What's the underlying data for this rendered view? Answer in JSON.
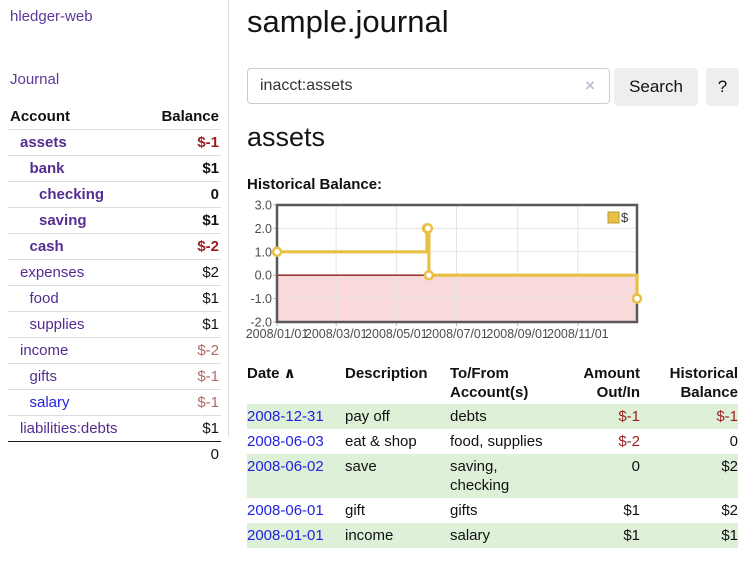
{
  "colors": {
    "link_purple": "#552d90",
    "link_blue": "#2222dd",
    "negative_red": "#9c1f1f",
    "negative_muted": "#b06a66",
    "row_green": "#def0d8",
    "chart_line_gold": "#e9c045",
    "chart_zero_line": "#8b1a1a",
    "chart_negative_fill": "#f9d9d9",
    "chart_border": "#595959",
    "chart_grid": "#e4e4e4",
    "chart_text": "#4d4d4d"
  },
  "sidebar": {
    "app_title": "hledger-web",
    "nav": {
      "journal_label": "Journal"
    },
    "accounts_table": {
      "headers": {
        "account": "Account",
        "balance": "Balance"
      },
      "rows": [
        {
          "name": "assets",
          "depth": 1,
          "bold": true,
          "balance": "$-1",
          "balance_color": "negative"
        },
        {
          "name": "bank",
          "depth": 2,
          "bold": true,
          "balance": "$1"
        },
        {
          "name": "checking",
          "depth": 3,
          "bold": true,
          "balance": "0"
        },
        {
          "name": "saving",
          "depth": 3,
          "bold": true,
          "balance": "$1"
        },
        {
          "name": "cash",
          "depth": 2,
          "bold": true,
          "balance": "$-2",
          "balance_color": "negative"
        },
        {
          "name": "expenses",
          "depth": 1,
          "bold": false,
          "balance": "$2"
        },
        {
          "name": "food",
          "depth": 2,
          "bold": false,
          "balance": "$1"
        },
        {
          "name": "supplies",
          "depth": 2,
          "bold": false,
          "balance": "$1"
        },
        {
          "name": "income",
          "depth": 1,
          "bold": false,
          "balance": "$-2",
          "balance_color": "negative-muted"
        },
        {
          "name": "gifts",
          "depth": 2,
          "bold": false,
          "balance": "$-1",
          "balance_color": "negative-muted"
        },
        {
          "name": "salary",
          "depth": 2,
          "bold": false,
          "balance": "$-1",
          "balance_color": "negative-muted",
          "link_color": "blue"
        },
        {
          "name": "liabilities:debts",
          "depth": 1,
          "bold": false,
          "balance": "$1"
        }
      ],
      "total": "0"
    }
  },
  "header": {
    "title": "sample.journal"
  },
  "search": {
    "value": "inacct:assets",
    "clear_icon": "×",
    "button_label": "Search",
    "help_label": "?"
  },
  "account_page": {
    "heading": "assets",
    "chart_label": "Historical Balance:"
  },
  "chart_data": {
    "type": "line",
    "step": true,
    "series": [
      {
        "name": "$",
        "points": [
          [
            "2008-01-01",
            1
          ],
          [
            "2008-06-01",
            2
          ],
          [
            "2008-06-02",
            2
          ],
          [
            "2008-06-03",
            0
          ],
          [
            "2008-12-31",
            -1
          ]
        ]
      }
    ],
    "x_range": [
      "2008-01-01",
      "2008-12-31"
    ],
    "x_ticks": [
      "2008/01/01",
      "2008/03/01",
      "2008/05/01",
      "2008/07/01",
      "2008/09/01",
      "2008/11/01"
    ],
    "y_ticks": [
      "3.0",
      "2.0",
      "1.0",
      "0.0",
      "-1.0",
      "-2.0"
    ],
    "ylim": [
      -2,
      3
    ],
    "grid": true,
    "legend": {
      "label": "$",
      "position": "top-right"
    },
    "negative_region_shaded": true
  },
  "register": {
    "sort_icon": "∧",
    "columns": [
      {
        "lines": [
          "Date"
        ],
        "align": "left",
        "sorted": true
      },
      {
        "lines": [
          "Description"
        ],
        "align": "left"
      },
      {
        "lines": [
          "To/From",
          "Account(s)"
        ],
        "align": "left"
      },
      {
        "lines": [
          "Amount",
          "Out/In"
        ],
        "align": "right"
      },
      {
        "lines": [
          "Historical",
          "Balance"
        ],
        "align": "right"
      }
    ],
    "rows": [
      {
        "date": "2008-12-31",
        "description": "pay off",
        "accounts": [
          "debts"
        ],
        "amount": "$-1",
        "amount_negative": true,
        "balance": "$-1",
        "balance_negative": true
      },
      {
        "date": "2008-06-03",
        "description": "eat & shop",
        "accounts": [
          "food, supplies"
        ],
        "amount": "$-2",
        "amount_negative": true,
        "balance": "0",
        "balance_negative": false
      },
      {
        "date": "2008-06-02",
        "description": "save",
        "accounts": [
          "saving,",
          "checking"
        ],
        "amount": "0",
        "amount_negative": false,
        "balance": "$2",
        "balance_negative": false
      },
      {
        "date": "2008-06-01",
        "description": "gift",
        "accounts": [
          "gifts"
        ],
        "amount": "$1",
        "amount_negative": false,
        "balance": "$2",
        "balance_negative": false
      },
      {
        "date": "2008-01-01",
        "description": "income",
        "accounts": [
          "salary"
        ],
        "amount": "$1",
        "amount_negative": false,
        "balance": "$1",
        "balance_negative": false
      }
    ]
  }
}
